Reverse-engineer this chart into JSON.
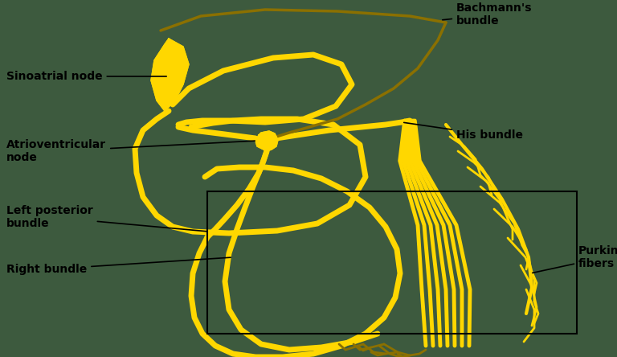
{
  "bg_color": "#3d5a3e",
  "yellow": "#FFD700",
  "dark_yellow": "#8B7000",
  "black": "#000000",
  "lw_thick": 5.0,
  "lw_med": 3.5,
  "lw_thin": 2.0,
  "labels": {
    "sinoatrial_node": "Sinoatrial node",
    "av_node": "Atrioventricular\nnode",
    "bachmann": "Bachmann's\nbundle",
    "his_bundle": "His bundle",
    "left_posterior": "Left posterior\nbundle",
    "right_bundle": "Right bundle",
    "purkinje": "Purkinje\nfibers"
  }
}
